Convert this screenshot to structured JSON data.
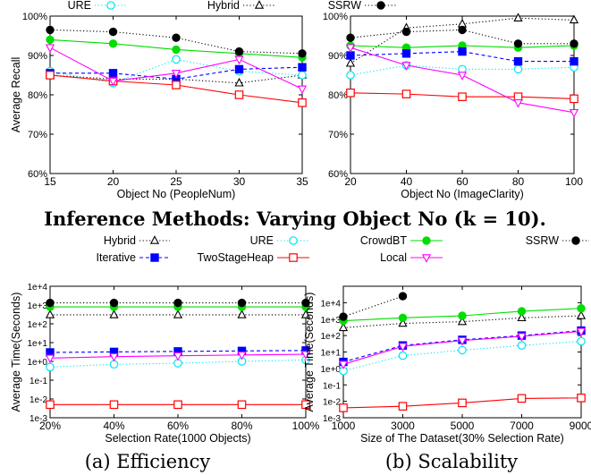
{
  "inference_caption": "Inference Methods: Varying Object No (k = 10).",
  "legend_bottom": [
    {
      "name": "Hybrid",
      "color": "#000000",
      "marker": "triangle-open",
      "dash": "dotted"
    },
    {
      "name": "URE",
      "color": "#00e5ee",
      "marker": "circle-open",
      "dash": "dotted"
    },
    {
      "name": "CrowdBT",
      "color": "#00dd00",
      "marker": "circle-filled",
      "dash": "solid"
    },
    {
      "name": "SSRW",
      "color": "#000000",
      "marker": "circle-filled",
      "dash": "dotted"
    },
    {
      "name": "Iterative",
      "color": "#0000ff",
      "marker": "square-filled",
      "dash": "dashed"
    },
    {
      "name": "TwoStageHeap",
      "color": "#ff0000",
      "marker": "square-open",
      "dash": "solid"
    },
    {
      "name": "Local",
      "color": "#ff00ff",
      "marker": "triangle-down-open",
      "dash": "solid"
    }
  ],
  "chart_data": [
    {
      "id": "top-left",
      "type": "line",
      "xlabel": "Object No (PeopleNum)",
      "ylabel": "Average Recall",
      "x": [
        15,
        20,
        25,
        30,
        35
      ],
      "xticks": [
        "15",
        "20",
        "25",
        "30",
        "35"
      ],
      "yticks": [
        "60%",
        "70%",
        "80%",
        "90%",
        "100%"
      ],
      "ylim": [
        60,
        100
      ],
      "legend": [
        "URE",
        "Hybrid"
      ],
      "series": [
        {
          "name": "Hybrid",
          "values": [
            85,
            84,
            84,
            83,
            85
          ],
          "color": "#000000",
          "marker": "triangle-open",
          "dash": "dotted"
        },
        {
          "name": "URE",
          "values": [
            86,
            83,
            89,
            86,
            85
          ],
          "color": "#00e5ee",
          "marker": "circle-open",
          "dash": "dotted"
        },
        {
          "name": "CrowdBT",
          "values": [
            94,
            93,
            91.5,
            90.5,
            89.5
          ],
          "color": "#00dd00",
          "marker": "circle-filled",
          "dash": "solid"
        },
        {
          "name": "SSRW",
          "values": [
            96.5,
            96,
            94.5,
            91,
            90.5
          ],
          "color": "#000000",
          "marker": "circle-filled",
          "dash": "dotted"
        },
        {
          "name": "Iterative",
          "values": [
            85.5,
            85.5,
            84,
            86.5,
            87
          ],
          "color": "#0000ff",
          "marker": "square-filled",
          "dash": "dashed"
        },
        {
          "name": "TwoStageHeap",
          "values": [
            85,
            83.5,
            82.5,
            80,
            78
          ],
          "color": "#ff0000",
          "marker": "square-open",
          "dash": "solid"
        },
        {
          "name": "Local",
          "values": [
            92,
            83.5,
            85.5,
            89,
            81.5
          ],
          "color": "#ff00ff",
          "marker": "triangle-down-open",
          "dash": "solid"
        }
      ]
    },
    {
      "id": "top-right",
      "type": "line",
      "xlabel": "Object No (ImageClarity)",
      "ylabel": "",
      "x": [
        20,
        40,
        60,
        80,
        100
      ],
      "xticks": [
        "20",
        "40",
        "60",
        "80",
        "100"
      ],
      "yticks": [
        "60%",
        "70%",
        "80%",
        "90%",
        "100%"
      ],
      "ylim": [
        60,
        100
      ],
      "legend": [
        "SSRW"
      ],
      "series": [
        {
          "name": "Hybrid",
          "values": [
            88,
            97,
            98,
            99.5,
            99
          ],
          "color": "#000000",
          "marker": "triangle-open",
          "dash": "dotted"
        },
        {
          "name": "URE",
          "values": [
            85,
            87.5,
            86.5,
            86.5,
            87
          ],
          "color": "#00e5ee",
          "marker": "circle-open",
          "dash": "dotted"
        },
        {
          "name": "CrowdBT",
          "values": [
            92.5,
            92,
            92.5,
            92,
            92.5
          ],
          "color": "#00dd00",
          "marker": "circle-filled",
          "dash": "solid"
        },
        {
          "name": "SSRW",
          "values": [
            94.5,
            96,
            96.5,
            93,
            93
          ],
          "color": "#000000",
          "marker": "circle-filled",
          "dash": "dotted"
        },
        {
          "name": "Iterative",
          "values": [
            90,
            90.5,
            91,
            88.5,
            88.5
          ],
          "color": "#0000ff",
          "marker": "square-filled",
          "dash": "dashed"
        },
        {
          "name": "TwoStageHeap",
          "values": [
            80.5,
            80.2,
            79.5,
            79.5,
            79
          ],
          "color": "#ff0000",
          "marker": "square-open",
          "dash": "solid"
        },
        {
          "name": "Local",
          "values": [
            92,
            87.5,
            85,
            78,
            75.5
          ],
          "color": "#ff00ff",
          "marker": "triangle-down-open",
          "dash": "solid"
        }
      ]
    },
    {
      "id": "bottom-left",
      "type": "line",
      "caption": "(a) Efficiency",
      "xlabel": "Selection Rate(1000 Objects)",
      "ylabel": "Average Time(Seconds)",
      "yscale": "log",
      "x": [
        20,
        40,
        60,
        80,
        100
      ],
      "xticks": [
        "20%",
        "40%",
        "60%",
        "80%",
        "100%"
      ],
      "yticks": [
        "1e-3",
        "1e-2",
        "1e-1",
        "1e+0",
        "1e+1",
        "1e+2",
        "1e+3",
        "1e+4"
      ],
      "ylim": [
        0.001,
        10000
      ],
      "series": [
        {
          "name": "Hybrid",
          "values": [
            300,
            300,
            300,
            300,
            300
          ],
          "color": "#000000",
          "marker": "triangle-open",
          "dash": "dotted"
        },
        {
          "name": "URE",
          "values": [
            0.5,
            0.7,
            0.8,
            1.0,
            1.2
          ],
          "color": "#00e5ee",
          "marker": "circle-open",
          "dash": "dotted"
        },
        {
          "name": "CrowdBT",
          "values": [
            800,
            800,
            800,
            800,
            800
          ],
          "color": "#00dd00",
          "marker": "circle-filled",
          "dash": "solid"
        },
        {
          "name": "SSRW",
          "values": [
            1300,
            1300,
            1300,
            1300,
            1300
          ],
          "color": "#000000",
          "marker": "circle-filled",
          "dash": "dotted"
        },
        {
          "name": "Iterative",
          "values": [
            3,
            3.2,
            3.4,
            3.6,
            3.8
          ],
          "color": "#0000ff",
          "marker": "square-filled",
          "dash": "dashed"
        },
        {
          "name": "TwoStageHeap",
          "values": [
            0.005,
            0.005,
            0.005,
            0.005,
            0.005
          ],
          "color": "#ff0000",
          "marker": "square-open",
          "dash": "solid"
        },
        {
          "name": "Local",
          "values": [
            1.5,
            1.8,
            2.0,
            2.2,
            2.4
          ],
          "color": "#ff00ff",
          "marker": "triangle-down-open",
          "dash": "solid"
        }
      ]
    },
    {
      "id": "bottom-right",
      "type": "line",
      "caption": "(b) Scalability",
      "xlabel": "Size of The Dataset(30% Selection Rate)",
      "ylabel": "Average Time(Seconds)",
      "yscale": "log",
      "x": [
        1000,
        3000,
        5000,
        7000,
        9000
      ],
      "xticks": [
        "1000",
        "3000",
        "5000",
        "7000",
        "9000"
      ],
      "yticks": [
        "1e-3",
        "1e-2",
        "1e-1",
        "1e+0",
        "1e+1",
        "1e+2",
        "1e+3",
        "1e+4"
      ],
      "ylim": [
        0.001,
        100000
      ],
      "series": [
        {
          "name": "Hybrid",
          "values": [
            300,
            550,
            700,
            1200,
            1600
          ],
          "color": "#000000",
          "marker": "triangle-open",
          "dash": "dotted"
        },
        {
          "name": "URE",
          "values": [
            0.7,
            6,
            13,
            25,
            45
          ],
          "color": "#00e5ee",
          "marker": "circle-open",
          "dash": "dotted"
        },
        {
          "name": "CrowdBT",
          "values": [
            800,
            1200,
            1600,
            3000,
            4500
          ],
          "color": "#00dd00",
          "marker": "circle-filled",
          "dash": "solid"
        },
        {
          "name": "SSRW",
          "values": [
            1400,
            25000,
            null,
            null,
            null
          ],
          "color": "#000000",
          "marker": "circle-filled",
          "dash": "dotted"
        },
        {
          "name": "Iterative",
          "values": [
            2.5,
            25,
            55,
            100,
            200
          ],
          "color": "#0000ff",
          "marker": "square-filled",
          "dash": "dashed"
        },
        {
          "name": "TwoStageHeap",
          "values": [
            0.004,
            0.005,
            0.008,
            0.015,
            0.016
          ],
          "color": "#ff0000",
          "marker": "square-open",
          "dash": "solid"
        },
        {
          "name": "Local",
          "values": [
            1.8,
            22,
            50,
            90,
            180
          ],
          "color": "#ff00ff",
          "marker": "triangle-down-open",
          "dash": "solid"
        }
      ]
    }
  ]
}
